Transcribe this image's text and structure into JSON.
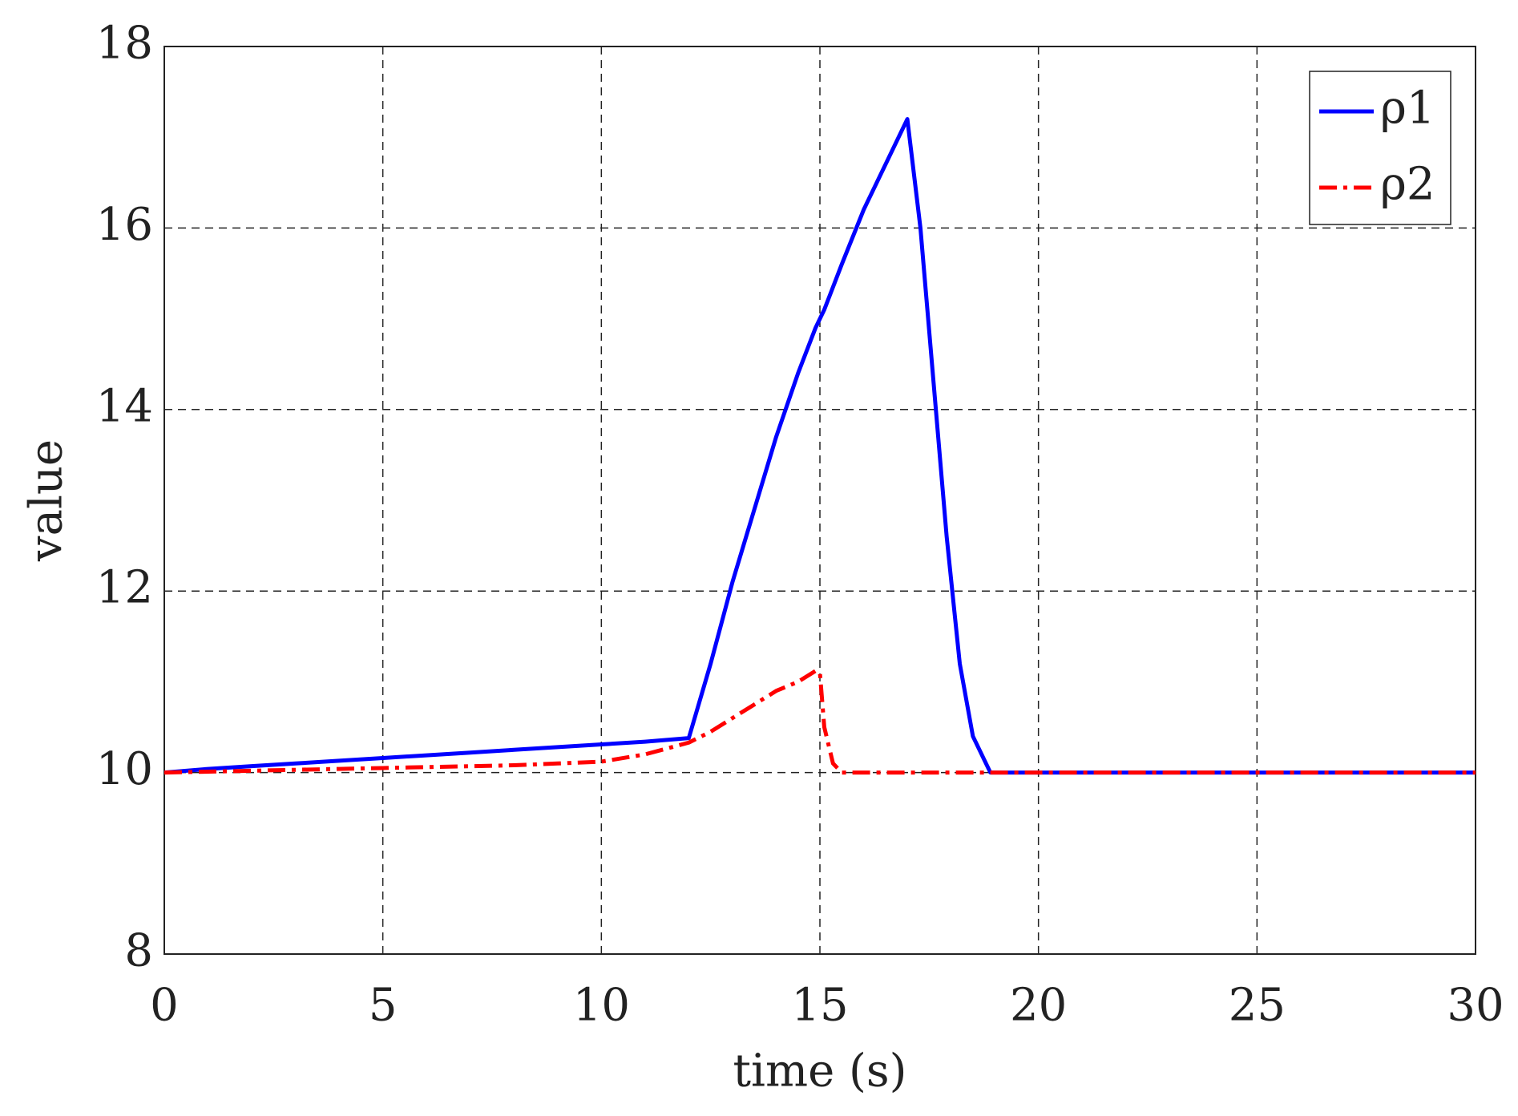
{
  "chart_data": {
    "type": "line",
    "xlabel": "time (s)",
    "ylabel": "value",
    "x": [
      0,
      1,
      2,
      3,
      4,
      5,
      6,
      7,
      8,
      9,
      10,
      11,
      12,
      12.5,
      13,
      13.5,
      14,
      14.5,
      14.9,
      15,
      15.1,
      15.3,
      15.5,
      16,
      16.5,
      17,
      17.3,
      17.6,
      17.9,
      18.2,
      18.5,
      18.9,
      20,
      25,
      30
    ],
    "series": [
      {
        "name": "ρ1",
        "color": "#0000ff",
        "style": "solid",
        "values": [
          10,
          10.04,
          10.07,
          10.1,
          10.13,
          10.16,
          10.19,
          10.22,
          10.25,
          10.28,
          10.31,
          10.34,
          10.38,
          11.2,
          12.1,
          12.9,
          13.7,
          14.4,
          14.9,
          15.0,
          15.1,
          15.35,
          15.6,
          16.2,
          16.7,
          17.2,
          16.0,
          14.3,
          12.6,
          11.2,
          10.4,
          10.0,
          10,
          10,
          10
        ]
      },
      {
        "name": "ρ2",
        "color": "#ff0000",
        "style": "dash-dot",
        "values": [
          10,
          10.01,
          10.02,
          10.03,
          10.04,
          10.05,
          10.06,
          10.07,
          10.08,
          10.1,
          10.12,
          10.2,
          10.33,
          10.45,
          10.6,
          10.75,
          10.9,
          11.0,
          11.12,
          11.1,
          10.5,
          10.1,
          10,
          10,
          10,
          10,
          10,
          10,
          10,
          10,
          10,
          10,
          10,
          10,
          10
        ]
      }
    ],
    "xlim": [
      0,
      30
    ],
    "xticks": [
      0,
      5,
      10,
      15,
      20,
      25,
      30
    ],
    "ylim": [
      8,
      18
    ],
    "yticks": [
      8,
      10,
      12,
      14,
      16,
      18
    ],
    "grid": true,
    "legend": "upper-right"
  }
}
